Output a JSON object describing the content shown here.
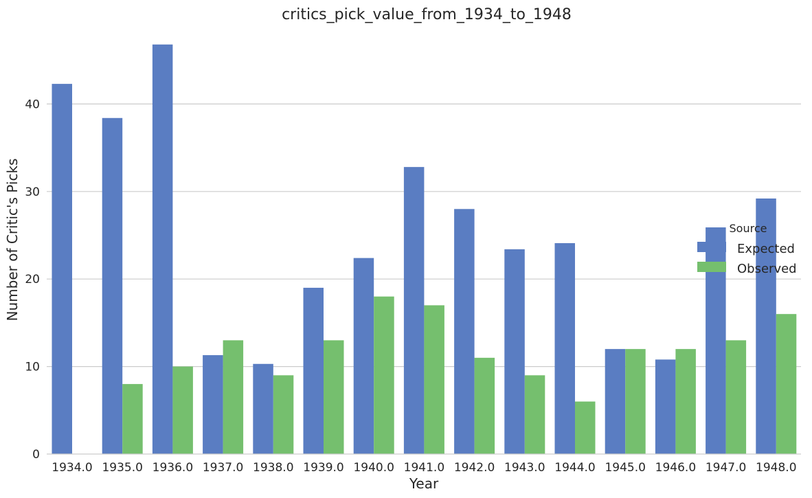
{
  "chart_data": {
    "type": "bar",
    "title": "critics_pick_value_from_1934_to_1948",
    "xlabel": "Year",
    "ylabel": "Number of Critic's Picks",
    "categories": [
      "1934.0",
      "1935.0",
      "1936.0",
      "1937.0",
      "1938.0",
      "1939.0",
      "1940.0",
      "1941.0",
      "1942.0",
      "1943.0",
      "1944.0",
      "1945.0",
      "1946.0",
      "1947.0",
      "1948.0"
    ],
    "series": [
      {
        "name": "Expected",
        "color": "#5a7dc2",
        "values": [
          42.3,
          38.4,
          46.8,
          11.3,
          10.3,
          19.0,
          22.4,
          32.8,
          28.0,
          23.4,
          24.1,
          12.0,
          10.8,
          25.9,
          29.2
        ]
      },
      {
        "name": "Observed",
        "color": "#75bf6e",
        "values": [
          0,
          8,
          10,
          13,
          9,
          13,
          18,
          17,
          11,
          9,
          6,
          12,
          12,
          13,
          16
        ]
      }
    ],
    "ylim": [
      0,
      48
    ],
    "yticks": [
      "0",
      "10",
      "20",
      "30",
      "40"
    ],
    "grid": "horizontal",
    "legend": {
      "title": "Source",
      "position": "right",
      "entries": [
        "Expected",
        "Observed"
      ]
    }
  }
}
